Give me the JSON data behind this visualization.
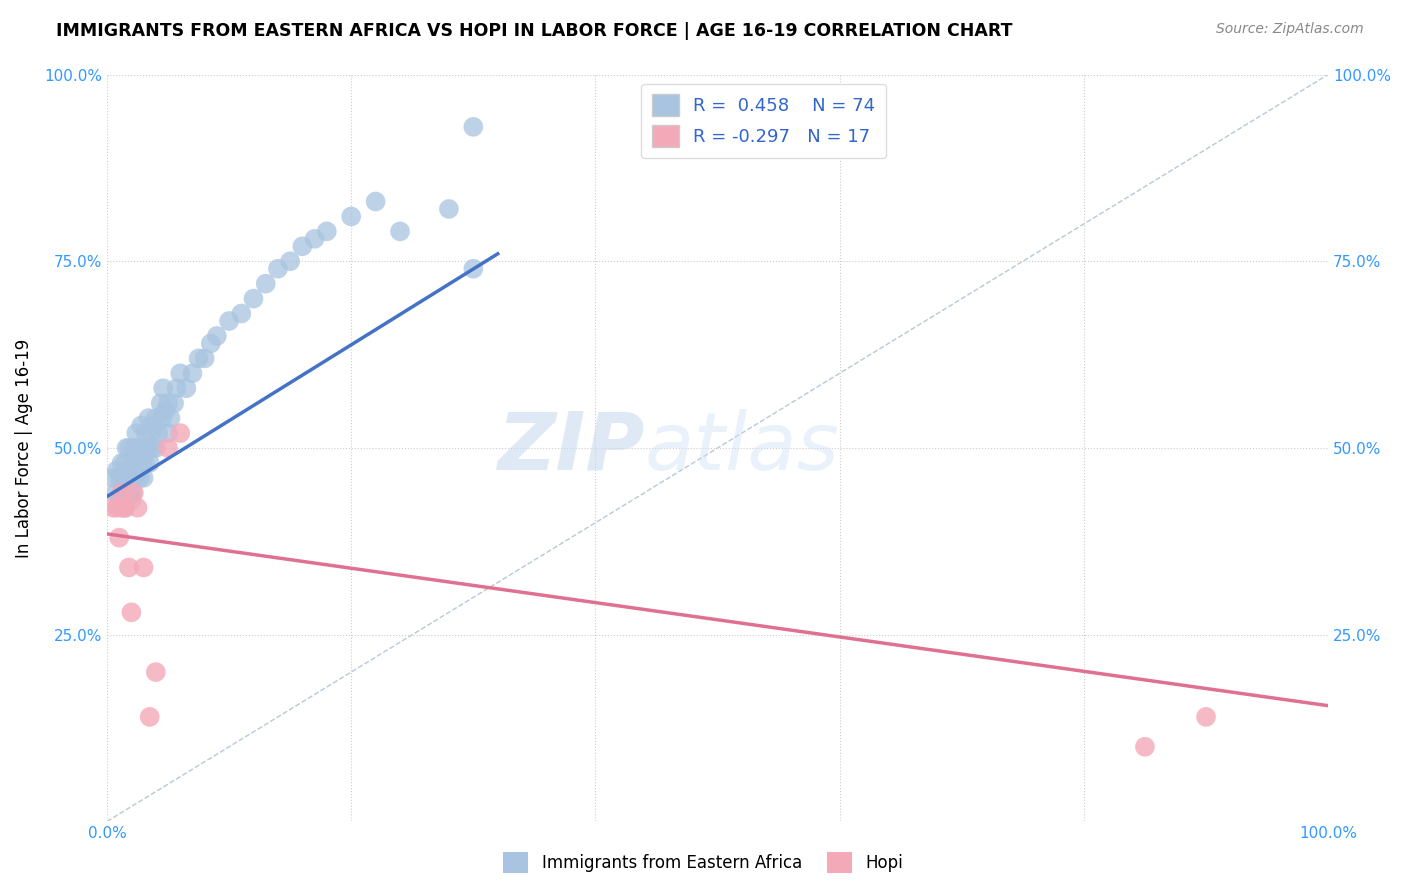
{
  "title": "IMMIGRANTS FROM EASTERN AFRICA VS HOPI IN LABOR FORCE | AGE 16-19 CORRELATION CHART",
  "source": "Source: ZipAtlas.com",
  "ylabel": "In Labor Force | Age 16-19",
  "xlim": [
    0.0,
    1.0
  ],
  "ylim": [
    0.0,
    1.0
  ],
  "blue_R": "0.458",
  "blue_N": "74",
  "pink_R": "-0.297",
  "pink_N": "17",
  "blue_color": "#a8c4e0",
  "blue_line_color": "#4472c4",
  "pink_color": "#f4a9b8",
  "pink_line_color": "#e07090",
  "diagonal_color": "#b8c8d8",
  "watermark_zip": "ZIP",
  "watermark_atlas": "atlas",
  "blue_scatter_x": [
    0.005,
    0.007,
    0.008,
    0.01,
    0.01,
    0.012,
    0.012,
    0.013,
    0.015,
    0.015,
    0.015,
    0.016,
    0.017,
    0.018,
    0.018,
    0.019,
    0.02,
    0.02,
    0.021,
    0.022,
    0.022,
    0.023,
    0.024,
    0.025,
    0.025,
    0.026,
    0.027,
    0.028,
    0.028,
    0.029,
    0.03,
    0.03,
    0.031,
    0.032,
    0.033,
    0.034,
    0.035,
    0.036,
    0.037,
    0.038,
    0.04,
    0.04,
    0.042,
    0.044,
    0.045,
    0.046,
    0.048,
    0.05,
    0.05,
    0.052,
    0.055,
    0.057,
    0.06,
    0.065,
    0.07,
    0.075,
    0.08,
    0.085,
    0.09,
    0.1,
    0.11,
    0.12,
    0.13,
    0.14,
    0.15,
    0.16,
    0.17,
    0.18,
    0.2,
    0.22,
    0.24,
    0.28,
    0.3,
    0.3
  ],
  "blue_scatter_y": [
    0.46,
    0.44,
    0.47,
    0.43,
    0.46,
    0.44,
    0.48,
    0.46,
    0.42,
    0.45,
    0.48,
    0.5,
    0.47,
    0.44,
    0.5,
    0.46,
    0.43,
    0.47,
    0.44,
    0.48,
    0.5,
    0.46,
    0.52,
    0.47,
    0.5,
    0.48,
    0.46,
    0.5,
    0.53,
    0.48,
    0.46,
    0.5,
    0.48,
    0.52,
    0.5,
    0.54,
    0.48,
    0.52,
    0.5,
    0.53,
    0.5,
    0.54,
    0.52,
    0.56,
    0.54,
    0.58,
    0.55,
    0.52,
    0.56,
    0.54,
    0.56,
    0.58,
    0.6,
    0.58,
    0.6,
    0.62,
    0.62,
    0.64,
    0.65,
    0.67,
    0.68,
    0.7,
    0.72,
    0.74,
    0.75,
    0.77,
    0.78,
    0.79,
    0.81,
    0.83,
    0.79,
    0.82,
    0.74,
    0.93
  ],
  "pink_scatter_x": [
    0.005,
    0.008,
    0.01,
    0.012,
    0.012,
    0.015,
    0.018,
    0.02,
    0.022,
    0.025,
    0.03,
    0.035,
    0.04,
    0.05,
    0.06,
    0.85,
    0.9
  ],
  "pink_scatter_y": [
    0.42,
    0.42,
    0.38,
    0.42,
    0.44,
    0.42,
    0.34,
    0.28,
    0.44,
    0.42,
    0.34,
    0.14,
    0.2,
    0.5,
    0.52,
    0.1,
    0.14
  ],
  "blue_line_x0": 0.0,
  "blue_line_x1": 0.32,
  "blue_line_y0": 0.435,
  "blue_line_y1": 0.76,
  "pink_line_x0": 0.0,
  "pink_line_x1": 1.0,
  "pink_line_y0": 0.385,
  "pink_line_y1": 0.155
}
